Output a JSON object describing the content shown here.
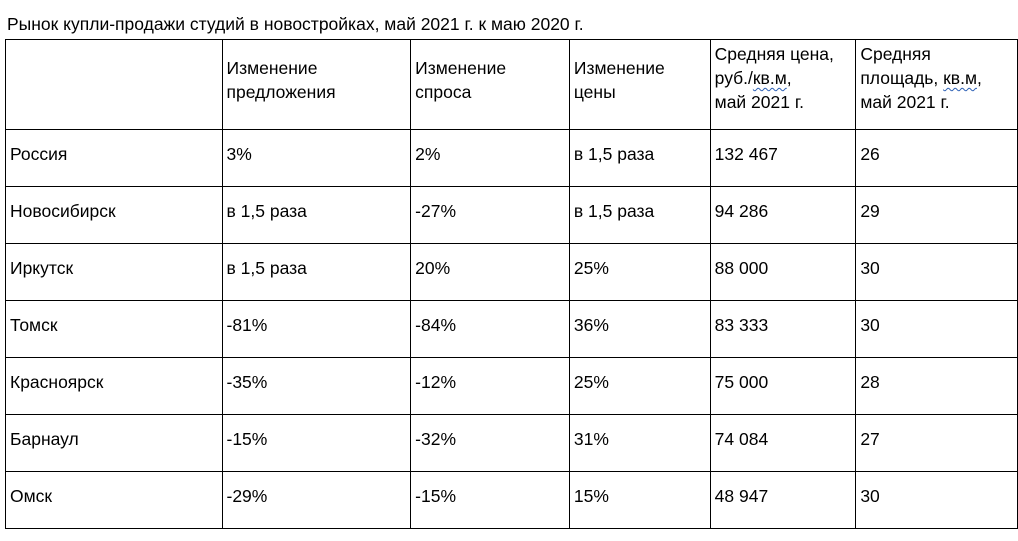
{
  "title": "Рынок купли-продажи  студий в новостройках, май 2021 г. к маю 2020 г.",
  "header": {
    "c1": "",
    "c2_l1": "Изменение",
    "c2_l2": "предложения",
    "c3_l1": "Изменение",
    "c3_l2": "спроса",
    "c4_l1": "Изменение",
    "c4_l2": "цены",
    "c5_l1": "Средняя цена,",
    "c5_l2a": "руб./",
    "c5_l2b": "кв.м",
    "c5_l2c": ",",
    "c5_l3": "май 2021 г.",
    "c6_l1": "Средняя",
    "c6_l2a": "площадь, ",
    "c6_l2b": "кв.м",
    "c6_l2c": ",",
    "c6_l3": "май 2021 г."
  },
  "rows": [
    {
      "region": "Россия",
      "supply": "3%",
      "demand": "2%",
      "price_change": "в 1,5 раза",
      "avg_price": "132 467",
      "avg_area": "26"
    },
    {
      "region": "Новосибирск",
      "supply": "в 1,5 раза",
      "demand": "-27%",
      "price_change": "в 1,5 раза",
      "avg_price": "94 286",
      "avg_area": "29"
    },
    {
      "region": "Иркутск",
      "supply": "в 1,5 раза",
      "demand": "20%",
      "price_change": "25%",
      "avg_price": "88 000",
      "avg_area": "30"
    },
    {
      "region": "Томск",
      "supply": "-81%",
      "demand": "-84%",
      "price_change": "36%",
      "avg_price": "83 333",
      "avg_area": "30"
    },
    {
      "region": "Красноярск",
      "supply": "-35%",
      "demand": "-12%",
      "price_change": "25%",
      "avg_price": "75 000",
      "avg_area": "28"
    },
    {
      "region": "Барнаул",
      "supply": "-15%",
      "demand": "-32%",
      "price_change": "31%",
      "avg_price": "74 084",
      "avg_area": "27"
    },
    {
      "region": "Омск",
      "supply": "-29%",
      "demand": "-15%",
      "price_change": "15%",
      "avg_price": "48 947",
      "avg_area": "30"
    }
  ],
  "colors": {
    "text": "#000000",
    "border": "#000000",
    "spellcheck_underline": "#2b5fb4",
    "background": "#ffffff"
  }
}
